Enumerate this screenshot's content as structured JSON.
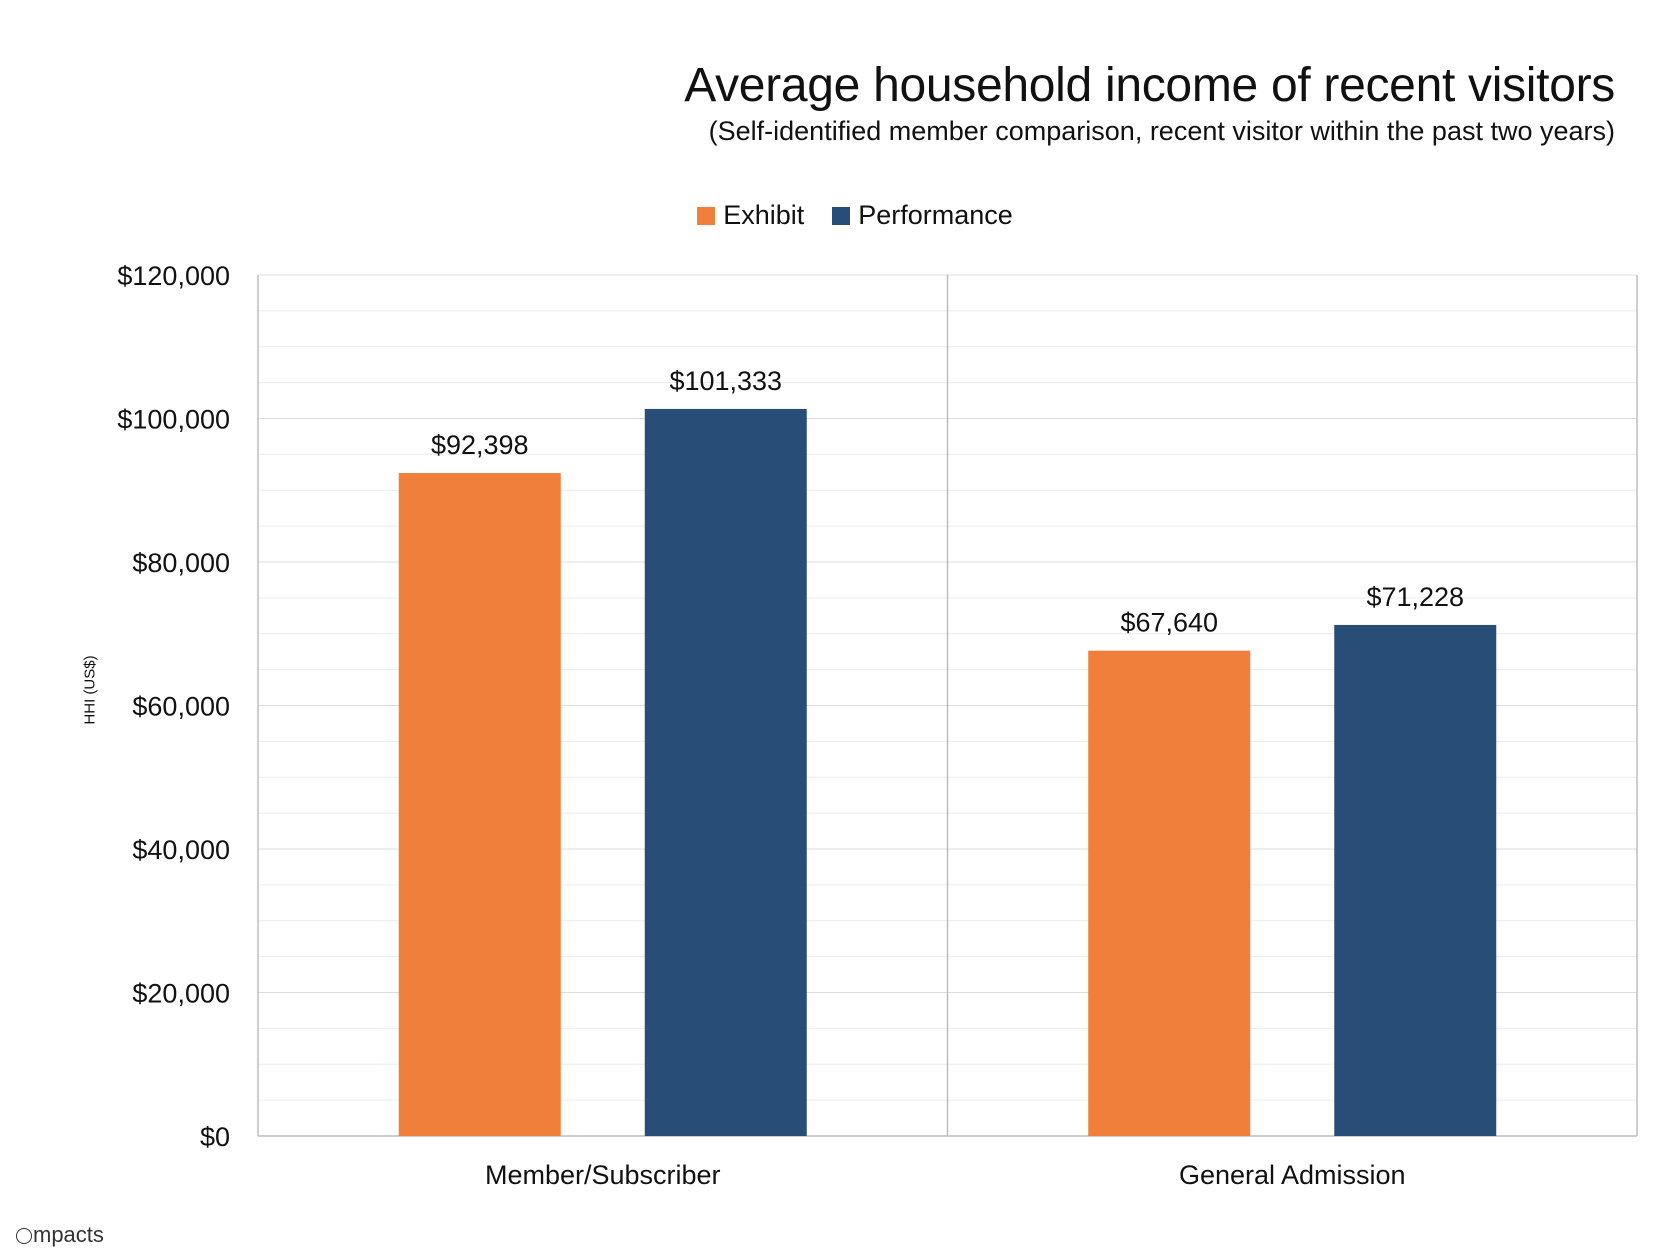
{
  "chart_data": {
    "type": "bar",
    "title": "Average household income of recent visitors",
    "subtitle": "(Self-identified member comparison, recent visitor within the past two years)",
    "ylabel": "HHI (US$)",
    "categories": [
      "Member/Subscriber",
      "General Admission"
    ],
    "series": [
      {
        "name": "Exhibit",
        "color": "#ef7f3a",
        "values": [
          92398,
          67640
        ],
        "labels": [
          "$92,398",
          "$67,640"
        ]
      },
      {
        "name": "Performance",
        "color": "#284e78",
        "values": [
          101333,
          71228
        ],
        "labels": [
          "$101,333",
          "$71,228"
        ]
      }
    ],
    "ylim": [
      0,
      120000
    ],
    "yticks": [
      0,
      20000,
      40000,
      60000,
      80000,
      100000,
      120000
    ],
    "ytick_labels": [
      "$0",
      "$20,000",
      "$40,000",
      "$60,000",
      "$80,000",
      "$100,000",
      "$120,000"
    ],
    "grid": true,
    "legend_position": "top-center"
  },
  "brand": {
    "text": "mpacts"
  }
}
